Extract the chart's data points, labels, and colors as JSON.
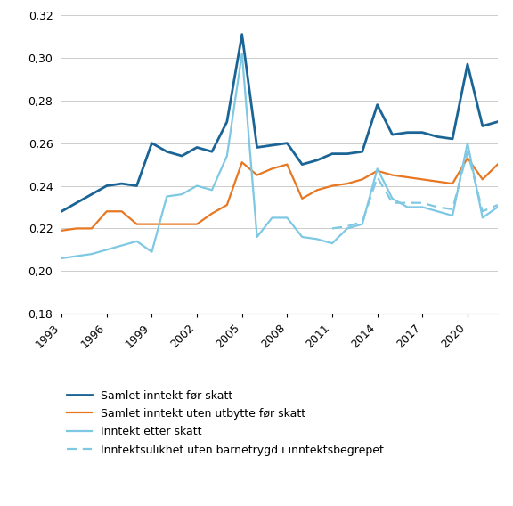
{
  "years": [
    1993,
    1994,
    1995,
    1996,
    1997,
    1998,
    1999,
    2000,
    2001,
    2002,
    2003,
    2004,
    2005,
    2006,
    2007,
    2008,
    2009,
    2010,
    2011,
    2012,
    2013,
    2014,
    2015,
    2016,
    2017,
    2018,
    2019,
    2020,
    2021,
    2022
  ],
  "samlet_for_skatt": [
    0.228,
    0.232,
    0.236,
    0.24,
    0.241,
    0.24,
    0.26,
    0.256,
    0.254,
    0.258,
    0.256,
    0.27,
    0.311,
    0.258,
    0.259,
    0.26,
    0.25,
    0.252,
    0.255,
    0.255,
    0.256,
    0.278,
    0.264,
    0.265,
    0.265,
    0.263,
    0.262,
    0.297,
    0.268,
    0.27
  ],
  "samlet_uten_utbytte": [
    0.219,
    0.22,
    0.22,
    0.228,
    0.228,
    0.222,
    0.222,
    0.222,
    0.222,
    0.222,
    0.227,
    0.231,
    0.251,
    0.245,
    0.248,
    0.25,
    0.234,
    0.238,
    0.24,
    0.241,
    0.243,
    0.247,
    0.245,
    0.244,
    0.243,
    0.242,
    0.241,
    0.253,
    0.243,
    0.25
  ],
  "etter_skatt": [
    0.206,
    0.207,
    0.208,
    0.21,
    0.212,
    0.214,
    0.209,
    0.235,
    0.236,
    0.24,
    0.238,
    0.254,
    0.302,
    0.216,
    0.225,
    0.225,
    0.216,
    0.215,
    0.213,
    0.22,
    0.222,
    0.248,
    0.234,
    0.23,
    0.23,
    0.228,
    0.226,
    0.26,
    0.225,
    0.23
  ],
  "uten_barnetrygd": [
    null,
    null,
    null,
    null,
    null,
    null,
    null,
    null,
    null,
    null,
    null,
    null,
    null,
    null,
    null,
    null,
    null,
    null,
    0.22,
    0.221,
    0.223,
    0.244,
    0.232,
    0.232,
    0.232,
    0.23,
    0.229,
    0.256,
    0.228,
    0.231
  ],
  "line1_color": "#1a6496",
  "line2_color": "#e87722",
  "line3_color": "#7ec8e3",
  "line4_color": "#7ec8e3",
  "ylim": [
    0.18,
    0.32
  ],
  "yticks": [
    0.18,
    0.2,
    0.22,
    0.24,
    0.26,
    0.28,
    0.3,
    0.32
  ],
  "xticks": [
    1993,
    1996,
    1999,
    2002,
    2005,
    2008,
    2011,
    2014,
    2017,
    2020
  ],
  "legend_labels": [
    "Samlet inntekt før skatt",
    "Samlet inntekt uten utbytte før skatt",
    "Inntekt etter skatt",
    "Inntektsulikhet uten barnetrygd i inntektsbegrepet"
  ],
  "grid_color": "#cccccc",
  "background_color": "#ffffff"
}
